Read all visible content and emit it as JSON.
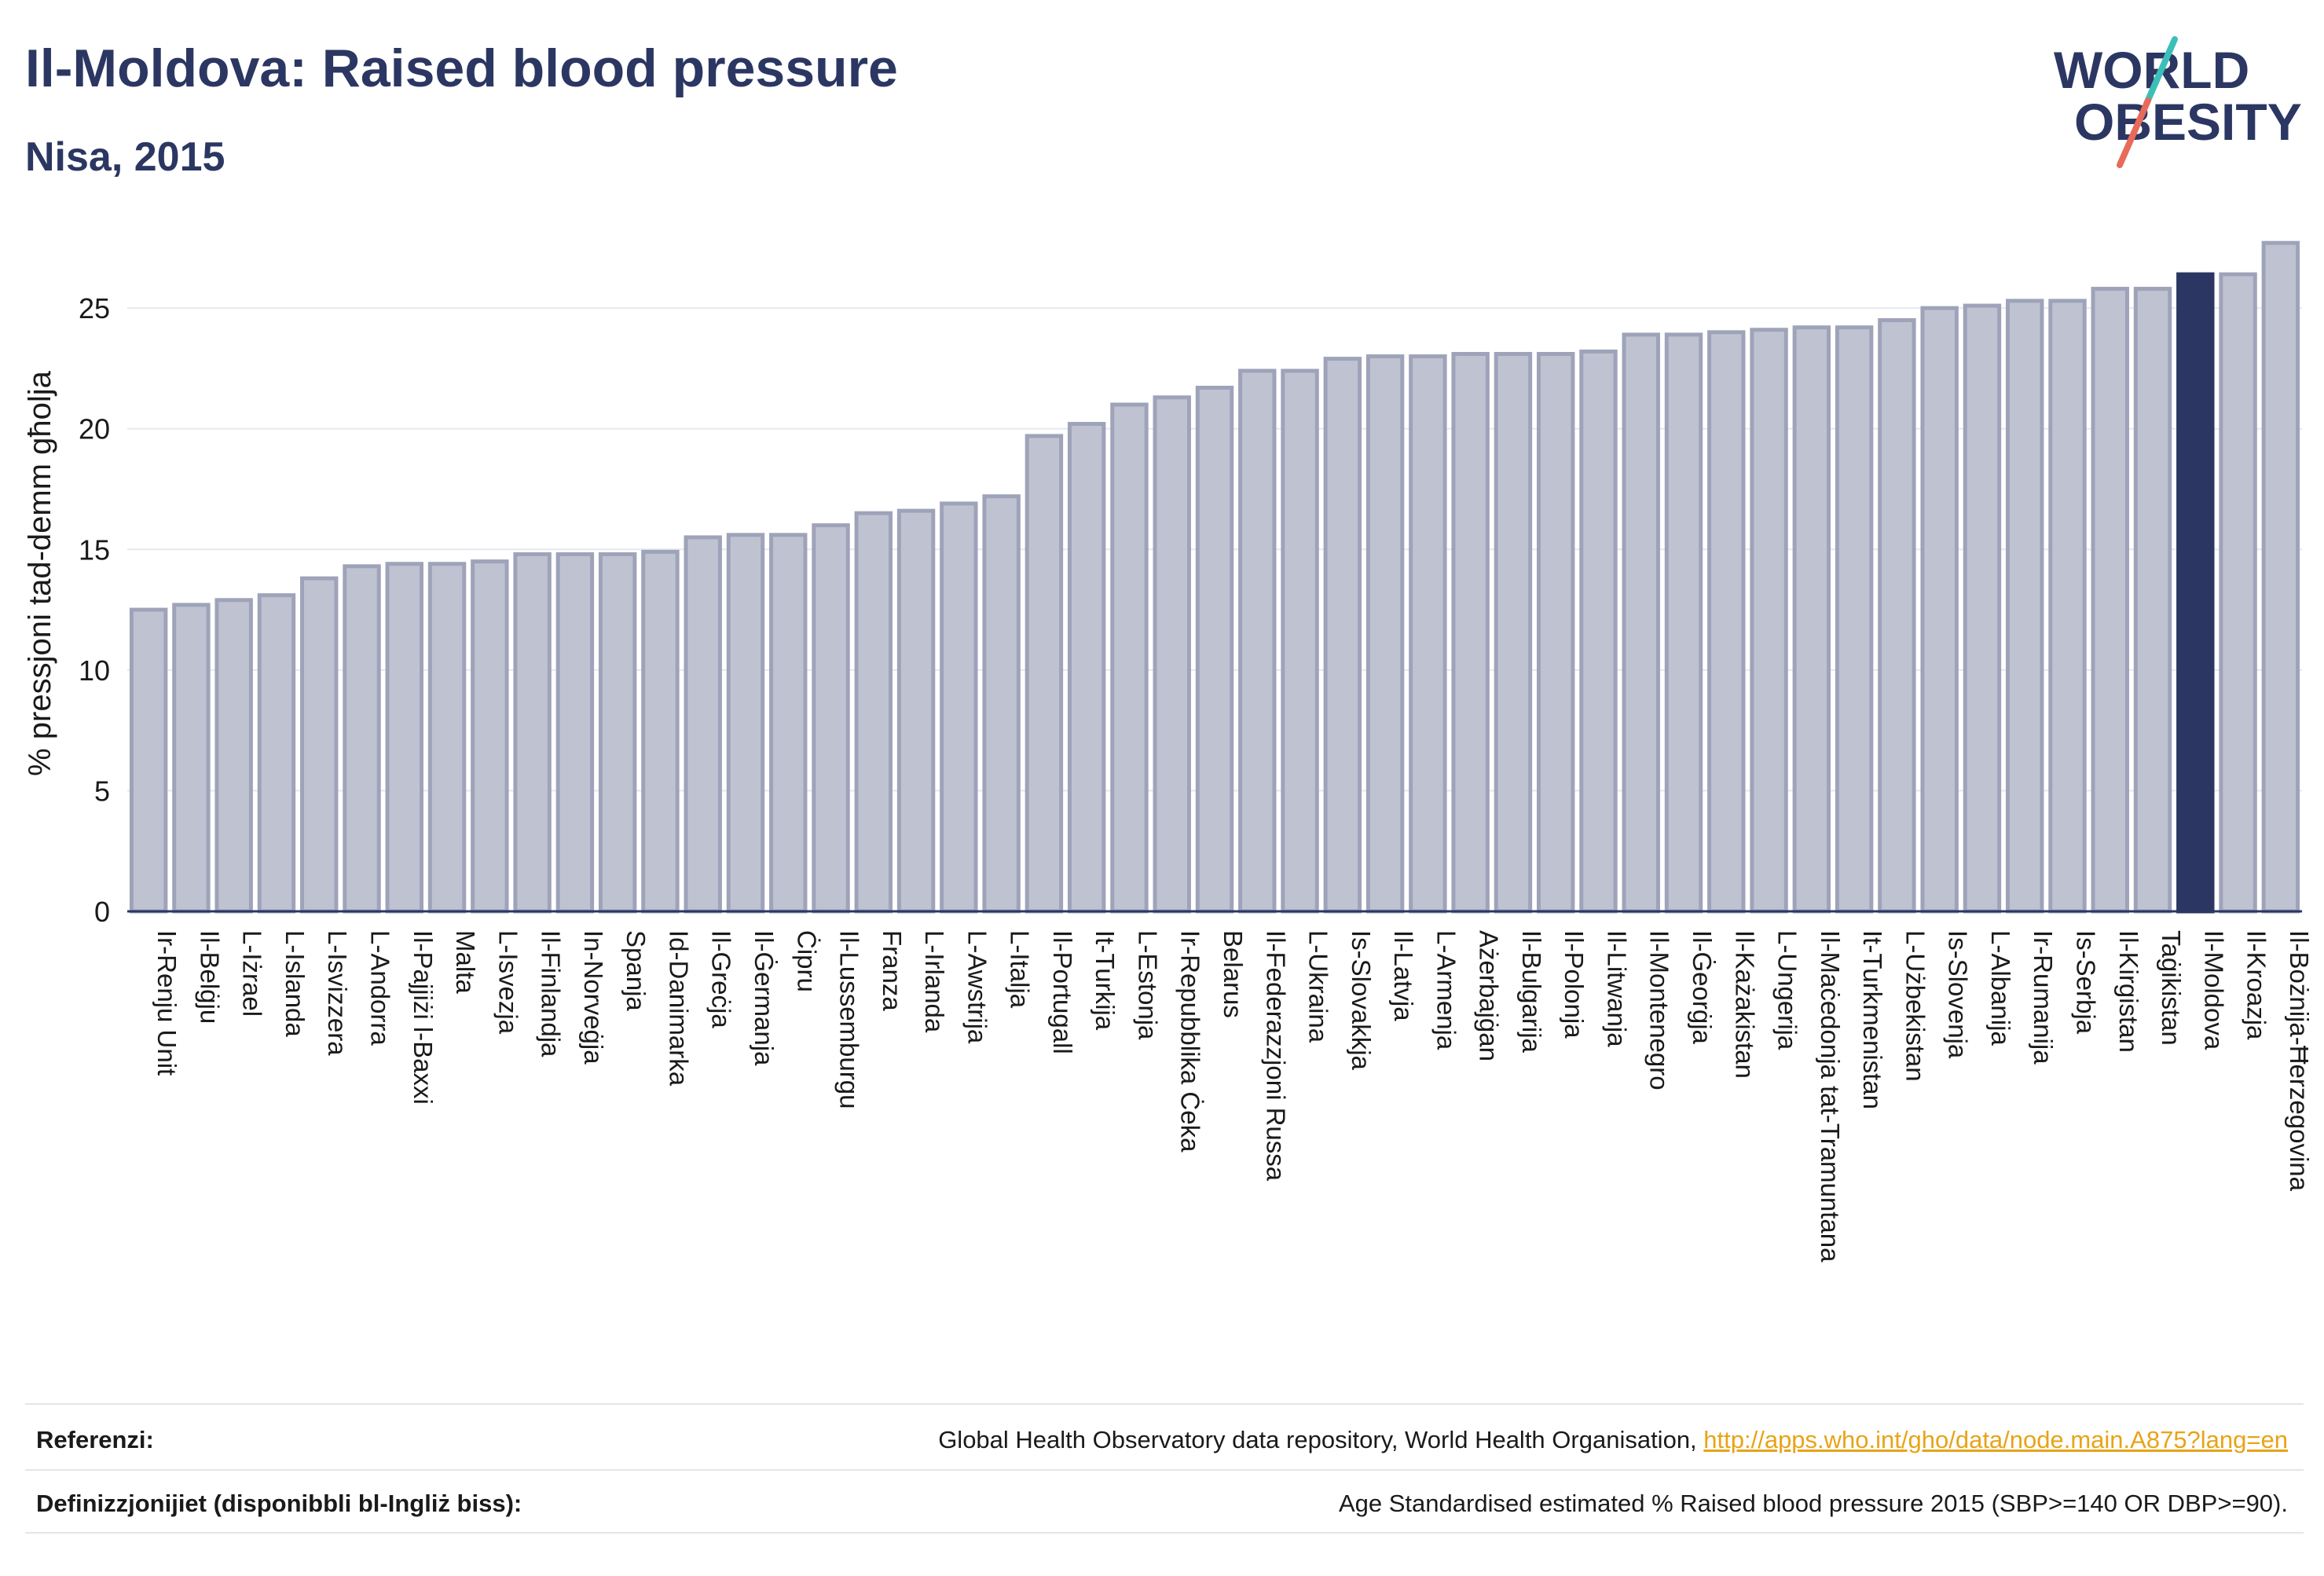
{
  "header": {
    "title": "Il-Moldova: Raised blood pressure",
    "subtitle": "Nisa, 2015"
  },
  "logo": {
    "line1": "WORLD",
    "line2": "OBESITY",
    "colors": {
      "text": "#2b3762",
      "slash_top": "#3bbfb8",
      "slash_bottom": "#e86a5a"
    }
  },
  "footer": {
    "references_label": "Referenzi:",
    "references_text": "Global Health Observatory data repository, World Health Organisation, ",
    "references_link": "http://apps.who.int/gho/data/node.main.A875?lang=en",
    "definitions_label": "Definizzjonijiet (disponibbli bl-Ingliż biss):",
    "definitions_text": "Age Standardised estimated % Raised blood pressure 2015 (SBP>=140 OR DBP>=90)."
  },
  "chart_data": {
    "type": "bar",
    "title": "Il-Moldova: Raised blood pressure",
    "subtitle": "Nisa, 2015",
    "ylabel": "% pressjoni tad-demm għolja",
    "xlabel": "",
    "ylim": [
      0,
      28
    ],
    "yticks": [
      0,
      5,
      10,
      15,
      20,
      25
    ],
    "grid": true,
    "highlight": "Il-Moldova",
    "colors": {
      "bar": "#bfc3d1",
      "bar_edge": "#9ea3b9",
      "highlight": "#2b3762",
      "axis": "#2b3762",
      "grid": "#e6e8ee"
    },
    "categories": [
      "Ir-Renju Unit",
      "Il-Belġju",
      "L-Iżrael",
      "L-Islanda",
      "L-Isvizzera",
      "L-Andorra",
      "Il-Pajjiżi l-Baxxi",
      "Malta",
      "L-Isvezja",
      "Il-Finlandja",
      "In-Norveġja",
      "Spanja",
      "Id-Danimarka",
      "Il-Greċja",
      "Il-Ġermanja",
      "Ċipru",
      "Il-Lussemburgu",
      "Franza",
      "L-Irlanda",
      "L-Awstrija",
      "L-Italja",
      "Il-Portugall",
      "It-Turkija",
      "L-Estonja",
      "Ir-Repubblika Ċeka",
      "Belarus",
      "Il-Federazzjoni Russa",
      "L-Ukraina",
      "Is-Slovakkja",
      "Il-Latvja",
      "L-Armenja",
      "Ażerbajġan",
      "Il-Bulgarija",
      "Il-Polonja",
      "Il-Litwanja",
      "Il-Montenegro",
      "Il-Ġeorġja",
      "Il-Każakistan",
      "L-Ungerija",
      "Il-Maċedonja tat-Tramuntana",
      "It-Turkmenistan",
      "L-Użbekistan",
      "Is-Slovenja",
      "L-Albanija",
      "Ir-Rumanija",
      "Is-Serbja",
      "Il-Kirgistan",
      "Taġikistan",
      "Il-Moldova",
      "Il-Kroazja",
      "Il-Bożnija-Ħerzegovina"
    ],
    "values": [
      12.5,
      12.7,
      12.9,
      13.1,
      13.8,
      14.3,
      14.4,
      14.4,
      14.5,
      14.8,
      14.8,
      14.8,
      14.9,
      15.5,
      15.6,
      15.6,
      16.0,
      16.5,
      16.6,
      16.9,
      17.2,
      19.7,
      20.2,
      21.0,
      21.3,
      21.7,
      22.4,
      22.4,
      22.9,
      23.0,
      23.0,
      23.1,
      23.1,
      23.1,
      23.2,
      23.9,
      23.9,
      24.0,
      24.1,
      24.2,
      24.2,
      24.5,
      25.0,
      25.1,
      25.3,
      25.3,
      25.8,
      25.8,
      26.4,
      26.4,
      27.7
    ]
  }
}
